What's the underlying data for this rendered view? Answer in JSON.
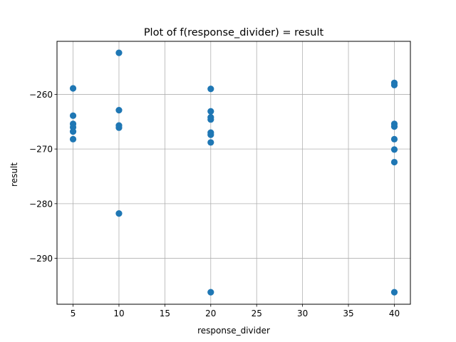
{
  "chart_data": {
    "type": "scatter",
    "title": "Plot of f(response_divider) = result",
    "xlabel": "response_divider",
    "ylabel": "result",
    "xlim": [
      3.25,
      41.75
    ],
    "ylim": [
      -298.4,
      -250.3
    ],
    "xticks": [
      5,
      10,
      15,
      20,
      25,
      30,
      35,
      40
    ],
    "yticks": [
      -290,
      -280,
      -270,
      -260
    ],
    "xtick_labels": [
      "5",
      "10",
      "15",
      "20",
      "25",
      "30",
      "35",
      "40"
    ],
    "ytick_labels": [
      "−290",
      "−280",
      "−270",
      "−260"
    ],
    "grid": true,
    "marker_color": "#1f77b4",
    "series": [
      {
        "x": [
          5,
          5,
          5,
          5,
          5,
          5,
          10,
          10,
          10,
          10,
          10,
          20,
          20,
          20,
          20,
          20,
          20,
          20,
          20,
          40,
          40,
          40,
          40,
          40,
          40,
          40,
          40
        ],
        "y": [
          -258.9,
          -263.9,
          -265.4,
          -266.0,
          -266.8,
          -268.2,
          -252.4,
          -262.9,
          -265.7,
          -266.1,
          -281.8,
          -259.0,
          -263.1,
          -264.2,
          -264.6,
          -267.0,
          -267.4,
          -268.8,
          -296.2,
          -257.9,
          -258.3,
          -265.4,
          -265.9,
          -268.2,
          -270.1,
          -272.4,
          -296.2
        ]
      }
    ]
  }
}
